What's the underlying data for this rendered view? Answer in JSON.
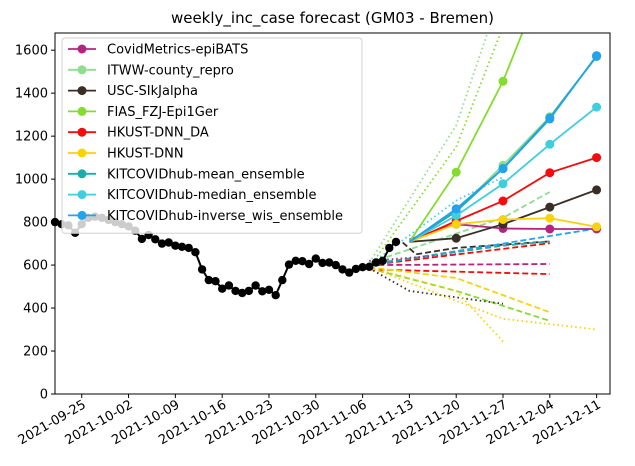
{
  "chart_data": {
    "type": "line",
    "title": "weekly_inc_case forecast (GM03 - Bremen)",
    "xlabel": "",
    "ylabel": "",
    "ylim": [
      0,
      1680
    ],
    "yticks": [
      0,
      200,
      400,
      600,
      800,
      1000,
      1200,
      1400,
      1600
    ],
    "xlim": [
      "2021-09-21",
      "2021-12-13"
    ],
    "xticks": [
      "2021-09-25",
      "2021-10-02",
      "2021-10-09",
      "2021-10-16",
      "2021-10-23",
      "2021-10-30",
      "2021-11-06",
      "2021-11-13",
      "2021-11-20",
      "2021-11-27",
      "2021-12-04",
      "2021-12-11"
    ],
    "legend_position": "upper-left",
    "truth": {
      "name": "",
      "color": "#000000",
      "points": [
        [
          "2021-09-21",
          800
        ],
        [
          "2021-09-22",
          790
        ],
        [
          "2021-09-23",
          785
        ],
        [
          "2021-09-24",
          750
        ],
        [
          "2021-09-25",
          790
        ],
        [
          "2021-09-26",
          820
        ],
        [
          "2021-09-27",
          825
        ],
        [
          "2021-09-28",
          820
        ],
        [
          "2021-09-29",
          810
        ],
        [
          "2021-09-30",
          800
        ],
        [
          "2021-10-01",
          790
        ],
        [
          "2021-10-02",
          780
        ],
        [
          "2021-10-03",
          760
        ],
        [
          "2021-10-04",
          722
        ],
        [
          "2021-10-05",
          740
        ],
        [
          "2021-10-06",
          720
        ],
        [
          "2021-10-07",
          700
        ],
        [
          "2021-10-08",
          705
        ],
        [
          "2021-10-09",
          690
        ],
        [
          "2021-10-10",
          685
        ],
        [
          "2021-10-11",
          680
        ],
        [
          "2021-10-12",
          660
        ],
        [
          "2021-10-13",
          580
        ],
        [
          "2021-10-14",
          530
        ],
        [
          "2021-10-15",
          525
        ],
        [
          "2021-10-16",
          490
        ],
        [
          "2021-10-17",
          505
        ],
        [
          "2021-10-18",
          480
        ],
        [
          "2021-10-19",
          470
        ],
        [
          "2021-10-20",
          480
        ],
        [
          "2021-10-21",
          505
        ],
        [
          "2021-10-22",
          478
        ],
        [
          "2021-10-23",
          485
        ],
        [
          "2021-10-24",
          460
        ],
        [
          "2021-10-25",
          530
        ],
        [
          "2021-10-26",
          602
        ],
        [
          "2021-10-27",
          620
        ],
        [
          "2021-10-28",
          618
        ],
        [
          "2021-10-29",
          605
        ],
        [
          "2021-10-30",
          630
        ],
        [
          "2021-10-31",
          610
        ],
        [
          "2021-11-01",
          612
        ],
        [
          "2021-11-02",
          600
        ],
        [
          "2021-11-03",
          580
        ],
        [
          "2021-11-04",
          565
        ],
        [
          "2021-11-05",
          582
        ],
        [
          "2021-11-06",
          590
        ],
        [
          "2021-11-07",
          592
        ],
        [
          "2021-11-08",
          612
        ],
        [
          "2021-11-09",
          620
        ],
        [
          "2021-11-10",
          680
        ],
        [
          "2021-11-11",
          708
        ]
      ]
    },
    "series": [
      {
        "name": "CovidMetrics-epiBATS",
        "color": "#b5247f",
        "dates": [
          "2021-11-13",
          "2021-11-20",
          "2021-11-27",
          "2021-12-04",
          "2021-12-11"
        ],
        "values": [
          720,
          790,
          770,
          768,
          768
        ]
      },
      {
        "name": "ITWW-county_repro",
        "color": "#90dc90",
        "dates": [
          "2021-11-13",
          "2021-11-20",
          "2021-11-27",
          "2021-12-04",
          "2021-12-11"
        ],
        "values": [
          708,
          850,
          1065,
          1290,
          1570
        ]
      },
      {
        "name": "USC-SIkJalpha",
        "color": "#3b2e26",
        "dates": [
          "2021-11-13",
          "2021-11-20",
          "2021-11-27",
          "2021-12-04",
          "2021-12-11"
        ],
        "values": [
          708,
          725,
          790,
          870,
          950
        ]
      },
      {
        "name": "FIAS_FZJ-Epi1Ger",
        "color": "#84dc2e",
        "dates": [
          "2021-11-13",
          "2021-11-20",
          "2021-11-27",
          "2021-12-04"
        ],
        "values": [
          708,
          1032,
          1455,
          2000
        ]
      },
      {
        "name": "HKUST-DNN_DA",
        "color": "#f20c0c",
        "dates": [
          "2021-11-13",
          "2021-11-20",
          "2021-11-27",
          "2021-12-04",
          "2021-12-11"
        ],
        "values": [
          708,
          805,
          898,
          1030,
          1100
        ]
      },
      {
        "name": "HKUST-DNN",
        "color": "#f8d20e",
        "dates": [
          "2021-11-13",
          "2021-11-20",
          "2021-11-27",
          "2021-12-04",
          "2021-12-11"
        ],
        "values": [
          708,
          790,
          812,
          818,
          778
        ]
      },
      {
        "name": "KITCOVIDhub-mean_ensemble",
        "color": "#21aba8",
        "dates": [
          "2021-11-13",
          "2021-11-20",
          "2021-11-27",
          "2021-12-04",
          "2021-12-11"
        ],
        "values": [
          708,
          850,
          1050,
          1285,
          1572
        ]
      },
      {
        "name": "KITCOVIDhub-median_ensemble",
        "color": "#3fcde0",
        "dates": [
          "2021-11-13",
          "2021-11-20",
          "2021-11-27",
          "2021-12-04",
          "2021-12-11"
        ],
        "values": [
          708,
          830,
          978,
          1162,
          1335
        ]
      },
      {
        "name": "KITCOVIDhub-inverse_wis_ensemble",
        "color": "#23a2ee",
        "dates": [
          "2021-11-13",
          "2021-11-20",
          "2021-11-27",
          "2021-12-04",
          "2021-12-11"
        ],
        "values": [
          708,
          862,
          1048,
          1280,
          1575
        ]
      }
    ],
    "interval_lines": [
      {
        "color": "#b5247f",
        "style": "dashed",
        "points": [
          [
            "2021-11-07",
            600
          ],
          [
            "2021-12-04",
            605
          ]
        ]
      },
      {
        "color": "#f20c0c",
        "style": "dashed",
        "points": [
          [
            "2021-11-07",
            580
          ],
          [
            "2021-12-04",
            558
          ]
        ]
      },
      {
        "color": "#f20c0c",
        "style": "dashed",
        "points": [
          [
            "2021-11-07",
            600
          ],
          [
            "2021-12-04",
            702
          ]
        ]
      },
      {
        "color": "#f8d20e",
        "style": "dashed",
        "points": [
          [
            "2021-11-07",
            590
          ],
          [
            "2021-11-20",
            540
          ],
          [
            "2021-12-04",
            380
          ]
        ]
      },
      {
        "color": "#84dc2e",
        "style": "dashed",
        "points": [
          [
            "2021-11-07",
            585
          ],
          [
            "2021-11-20",
            480
          ],
          [
            "2021-12-04",
            340
          ]
        ]
      },
      {
        "color": "#84dc2e",
        "style": "dotted",
        "points": [
          [
            "2021-11-07",
            590
          ],
          [
            "2021-11-20",
            1150
          ],
          [
            "2021-11-27",
            1710
          ]
        ]
      },
      {
        "color": "#90dc90",
        "style": "dotted",
        "points": [
          [
            "2021-11-07",
            610
          ],
          [
            "2021-11-20",
            1250
          ],
          [
            "2021-11-25",
            1710
          ]
        ]
      },
      {
        "color": "#90dc90",
        "style": "dashed",
        "points": [
          [
            "2021-11-07",
            610
          ],
          [
            "2021-11-27",
            820
          ],
          [
            "2021-12-04",
            940
          ]
        ]
      },
      {
        "color": "#3b2e26",
        "style": "dotted",
        "points": [
          [
            "2021-11-07",
            585
          ],
          [
            "2021-11-13",
            480
          ],
          [
            "2021-11-27",
            420
          ]
        ]
      },
      {
        "color": "#3b2e26",
        "style": "dashed",
        "points": [
          [
            "2021-11-12",
            705
          ],
          [
            "2021-11-14",
            650
          ],
          [
            "2021-11-20",
            680
          ],
          [
            "2021-12-04",
            710
          ]
        ]
      },
      {
        "color": "#f8d20e",
        "style": "dotted",
        "points": [
          [
            "2021-11-07",
            590
          ],
          [
            "2021-11-20",
            480
          ],
          [
            "2021-11-27",
            245
          ]
        ]
      },
      {
        "color": "#f8d20e",
        "style": "dotted",
        "points": [
          [
            "2021-11-07",
            590
          ],
          [
            "2021-11-27",
            350
          ],
          [
            "2021-12-11",
            300
          ]
        ]
      },
      {
        "color": "#3fcde0",
        "style": "dotted",
        "points": [
          [
            "2021-11-07",
            600
          ],
          [
            "2021-11-20",
            900
          ],
          [
            "2021-11-27",
            1010
          ]
        ]
      },
      {
        "color": "#23a2ee",
        "style": "dashed",
        "points": [
          [
            "2021-11-07",
            600
          ],
          [
            "2021-11-27",
            700
          ],
          [
            "2021-12-11",
            770
          ]
        ]
      },
      {
        "color": "#21aba8",
        "style": "dashed",
        "points": [
          [
            "2021-11-07",
            605
          ],
          [
            "2021-11-27",
            690
          ],
          [
            "2021-12-04",
            710
          ]
        ]
      },
      {
        "color": "#b5247f",
        "style": "dotted",
        "points": [
          [
            "2021-11-07",
            620
          ],
          [
            "2021-11-20",
            650
          ]
        ]
      }
    ]
  }
}
